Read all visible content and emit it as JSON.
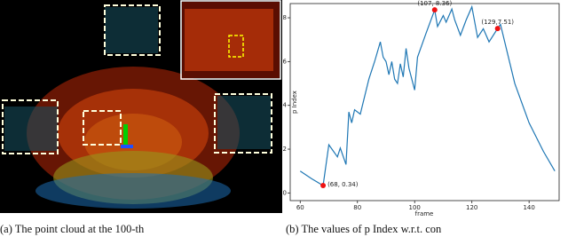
{
  "chart_data": {
    "type": "line",
    "x_label": "frame",
    "y_label": "p Index",
    "x": [
      60,
      64,
      68,
      70,
      73,
      74,
      76,
      77,
      78,
      79,
      81,
      84,
      86,
      88,
      89,
      90,
      91,
      92,
      93,
      94,
      95,
      96,
      97,
      98,
      100,
      101,
      104,
      107,
      108,
      110,
      111,
      113,
      114,
      116,
      118,
      120,
      122,
      124,
      126,
      129,
      130,
      135,
      140,
      145,
      149
    ],
    "series": [
      {
        "name": "p Index",
        "color": "#1f77b4",
        "values": [
          1.0,
          0.65,
          0.34,
          2.2,
          1.65,
          2.05,
          1.3,
          3.7,
          3.2,
          3.8,
          3.6,
          5.2,
          6.0,
          6.9,
          6.2,
          6.0,
          5.4,
          6.0,
          5.2,
          5.0,
          5.9,
          5.3,
          6.6,
          5.7,
          4.7,
          6.2,
          7.3,
          8.36,
          7.6,
          8.1,
          7.8,
          8.4,
          7.9,
          7.2,
          7.9,
          8.5,
          7.1,
          7.5,
          6.9,
          7.51,
          7.7,
          5.0,
          3.2,
          1.9,
          1.0
        ]
      }
    ],
    "annotations": [
      {
        "text": "(68, 0.34)",
        "x": 68,
        "y": 0.34
      },
      {
        "text": "(107, 8.36)",
        "x": 107,
        "y": 8.36
      },
      {
        "text": "(129,7.51)",
        "x": 129,
        "y": 7.51
      }
    ],
    "marker_color": "#ee1111",
    "xlim": [
      56.5,
      150.5
    ],
    "ylim": [
      -0.35,
      8.65
    ],
    "xticks": [
      60,
      80,
      100,
      120,
      140
    ],
    "yticks": [
      0,
      2,
      4,
      6,
      8
    ]
  },
  "captions": [
    "(a)  The  point  cloud  at  the  100-th",
    "(b)  The values of p Index w.r.t. con"
  ]
}
